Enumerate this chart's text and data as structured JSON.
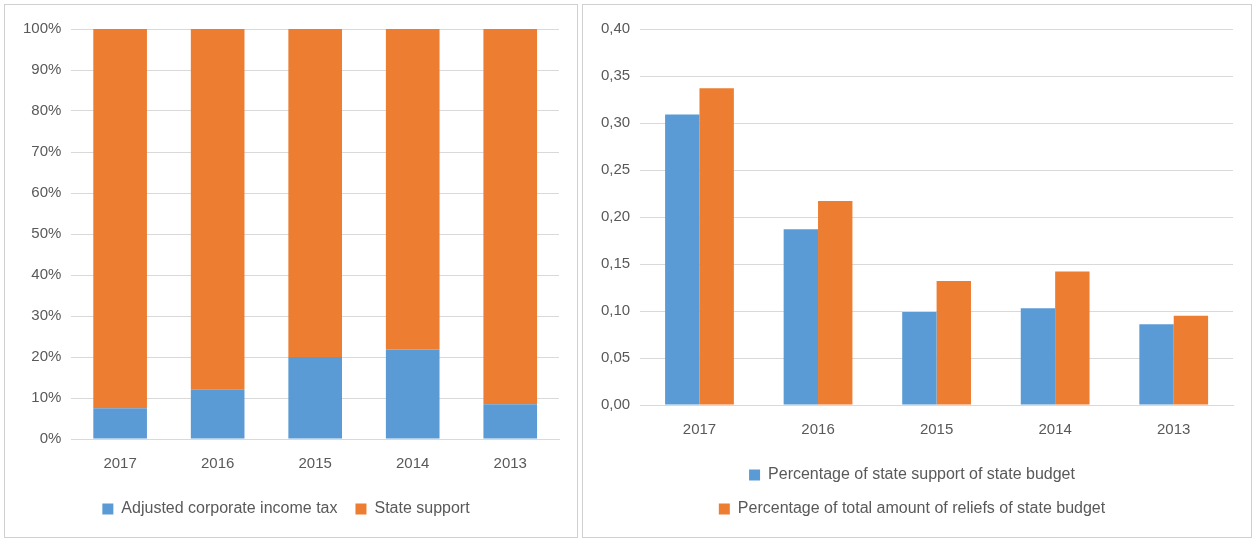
{
  "chart_data": [
    {
      "type": "bar",
      "stacked": true,
      "categories": [
        "2017",
        "2016",
        "2015",
        "2014",
        "2013"
      ],
      "series": [
        {
          "name": "Adjusted corporate income tax",
          "color": "#5b9bd5",
          "values": [
            7.5,
            12,
            20,
            21.8,
            8.5
          ]
        },
        {
          "name": "State support",
          "color": "#ed7d31",
          "values": [
            92.5,
            88,
            80,
            78.2,
            91.5
          ]
        }
      ],
      "ylim": [
        0,
        100
      ],
      "yticks": [
        {
          "value": 0,
          "label": "0%"
        },
        {
          "value": 10,
          "label": "10%"
        },
        {
          "value": 20,
          "label": "20%"
        },
        {
          "value": 30,
          "label": "30%"
        },
        {
          "value": 40,
          "label": "40%"
        },
        {
          "value": 50,
          "label": "50%"
        },
        {
          "value": 60,
          "label": "60%"
        },
        {
          "value": 70,
          "label": "70%"
        },
        {
          "value": 80,
          "label": "80%"
        },
        {
          "value": 90,
          "label": "90%"
        },
        {
          "value": 100,
          "label": "100%"
        }
      ],
      "grid": "y",
      "legend": "bottom"
    },
    {
      "type": "bar",
      "categories": [
        "2017",
        "2016",
        "2015",
        "2014",
        "2013"
      ],
      "series": [
        {
          "name": "Percentage of state support of state budget",
          "color": "#5b9bd5",
          "values": [
            0.309,
            0.187,
            0.099,
            0.103,
            0.086
          ]
        },
        {
          "name": "Percentage of total amount of reliefs of state budget",
          "color": "#ed7d31",
          "values": [
            0.337,
            0.217,
            0.132,
            0.142,
            0.095
          ]
        }
      ],
      "ylim": [
        0,
        0.4
      ],
      "yticks": [
        {
          "value": 0,
          "label": "0,00"
        },
        {
          "value": 0.05,
          "label": "0,05"
        },
        {
          "value": 0.1,
          "label": "0,10"
        },
        {
          "value": 0.15,
          "label": "0,15"
        },
        {
          "value": 0.2,
          "label": "0,20"
        },
        {
          "value": 0.25,
          "label": "0,25"
        },
        {
          "value": 0.3,
          "label": "0,30"
        },
        {
          "value": 0.35,
          "label": "0,35"
        },
        {
          "value": 0.4,
          "label": "0,40"
        }
      ],
      "grid": "y",
      "legend": "bottom"
    }
  ]
}
